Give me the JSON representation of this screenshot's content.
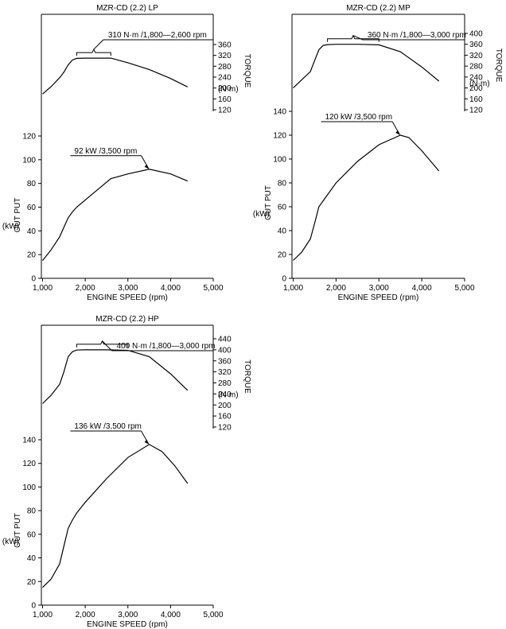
{
  "chart_data": [
    {
      "type": "line",
      "title": "MZR-CD (2.2) LP",
      "xlabel": "ENGINE  SPEED (rpm)",
      "x_ticks": [
        1000,
        2000,
        3000,
        4000,
        5000
      ],
      "x_tick_labels": [
        "1,000",
        "2,000",
        "3,000",
        "4,000",
        "5,000"
      ],
      "xlim": [
        1000,
        5000
      ],
      "output_axis": {
        "label": [
          "OUT PUT",
          "(kW)"
        ],
        "ticks": [
          0,
          20,
          40,
          60,
          80,
          100,
          120
        ],
        "ylim": [
          0,
          120
        ]
      },
      "torque_axis": {
        "label": [
          "TORQUE",
          "(N·m)"
        ],
        "ticks": [
          120,
          160,
          200,
          240,
          280,
          320,
          360
        ],
        "ylim": [
          120,
          360
        ]
      },
      "series": [
        {
          "axis": "torque",
          "x": [
            1000,
            1200,
            1400,
            1500,
            1600,
            1700,
            1800,
            2000,
            2200,
            2400,
            2600,
            3000,
            3500,
            4000,
            4400
          ],
          "values": [
            178,
            205,
            238,
            258,
            285,
            303,
            309,
            310,
            310,
            310,
            310,
            293,
            268,
            235,
            204
          ]
        },
        {
          "axis": "output",
          "x": [
            1000,
            1200,
            1400,
            1500,
            1600,
            1700,
            1800,
            2000,
            2200,
            2400,
            2600,
            3000,
            3500,
            4000,
            4400
          ],
          "values": [
            15,
            24,
            35,
            43,
            51,
            56,
            60,
            66,
            72,
            78,
            84,
            88,
            92,
            88,
            82
          ]
        }
      ],
      "annotations": [
        {
          "text": "310 N·m /1,800—2,600 rpm",
          "axis": "torque",
          "bracket": [
            1800,
            2600
          ],
          "y": 310
        },
        {
          "text": "92 kW /3,500 rpm",
          "axis": "output",
          "point": [
            3500,
            92
          ]
        }
      ]
    },
    {
      "type": "line",
      "title": "MZR-CD (2.2) MP",
      "xlabel": "ENGINE  SPEED (rpm)",
      "x_ticks": [
        1000,
        2000,
        3000,
        4000,
        5000
      ],
      "x_tick_labels": [
        "1,000",
        "2,000",
        "3,000",
        "4,000",
        "5,000"
      ],
      "xlim": [
        1000,
        5000
      ],
      "output_axis": {
        "label": [
          "OUT PUT",
          "(kW)"
        ],
        "ticks": [
          0,
          20,
          40,
          60,
          80,
          100,
          120,
          140
        ],
        "ylim": [
          0,
          140
        ]
      },
      "torque_axis": {
        "label": [
          "TORQUE",
          "(N·m)"
        ],
        "ticks": [
          120,
          160,
          200,
          240,
          280,
          320,
          360,
          400
        ],
        "ylim": [
          120,
          400
        ]
      },
      "series": [
        {
          "axis": "torque",
          "x": [
            1000,
            1200,
            1400,
            1500,
            1600,
            1700,
            1800,
            2000,
            2500,
            3000,
            3500,
            4000,
            4400
          ],
          "values": [
            200,
            230,
            260,
            300,
            340,
            356,
            359,
            360,
            360,
            358,
            333,
            277,
            225
          ]
        },
        {
          "axis": "output",
          "x": [
            1000,
            1200,
            1400,
            1500,
            1600,
            1700,
            1800,
            2000,
            2500,
            3000,
            3500,
            3700,
            4000,
            4400
          ],
          "values": [
            15,
            22,
            33,
            46,
            60,
            65,
            70,
            80,
            98,
            112,
            120,
            118,
            107,
            90
          ]
        }
      ],
      "annotations": [
        {
          "text": "360 N·m /1,800—3,000 rpm",
          "axis": "torque",
          "bracket": [
            1800,
            3000
          ],
          "y": 360
        },
        {
          "text": "120 kW /3,500 rpm",
          "axis": "output",
          "point": [
            3500,
            120
          ]
        }
      ]
    },
    {
      "type": "line",
      "title": "MZR-CD (2.2) HP",
      "xlabel": "ENGINE  SPEED (rpm)",
      "x_ticks": [
        1000,
        2000,
        3000,
        4000,
        5000
      ],
      "x_tick_labels": [
        "1,000",
        "2,000",
        "3,000",
        "4,000",
        "5,000"
      ],
      "xlim": [
        1000,
        5000
      ],
      "output_axis": {
        "label": [
          "OUT PUT",
          "(kW)"
        ],
        "ticks": [
          0,
          20,
          40,
          60,
          80,
          100,
          120,
          140
        ],
        "ylim": [
          0,
          140
        ]
      },
      "torque_axis": {
        "label": [
          "TORQUE",
          "(N·m)"
        ],
        "ticks": [
          120,
          160,
          200,
          240,
          280,
          320,
          360,
          400,
          440
        ],
        "ylim": [
          120,
          440
        ]
      },
      "series": [
        {
          "axis": "torque",
          "x": [
            1000,
            1200,
            1400,
            1500,
            1600,
            1700,
            1800,
            2000,
            2500,
            3000,
            3500,
            4000,
            4400
          ],
          "values": [
            205,
            235,
            275,
            320,
            375,
            393,
            399,
            400,
            400,
            398,
            375,
            313,
            253
          ]
        },
        {
          "axis": "output",
          "x": [
            1000,
            1200,
            1400,
            1500,
            1600,
            1700,
            1800,
            2000,
            2500,
            3000,
            3500,
            3800,
            4100,
            4400
          ],
          "values": [
            15,
            22,
            35,
            50,
            65,
            72,
            78,
            87,
            107,
            125,
            136,
            130,
            118,
            103
          ]
        }
      ],
      "annotations": [
        {
          "text": "400 N·m /1,800—3,000 rpm",
          "axis": "torque",
          "bracket": [
            1800,
            3000
          ],
          "y": 400
        },
        {
          "text": "136 kW /3,500 rpm",
          "axis": "output",
          "point": [
            3500,
            136
          ]
        }
      ]
    }
  ]
}
